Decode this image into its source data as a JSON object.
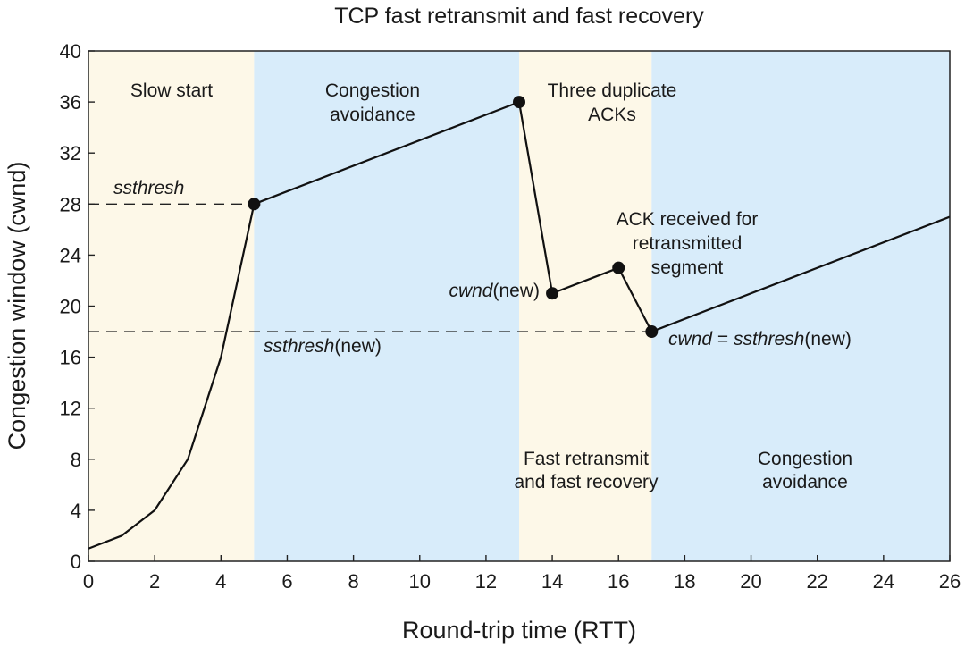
{
  "chart_data": {
    "type": "line",
    "title": "TCP fast retransmit and fast recovery",
    "xlabel": "Round-trip time (RTT)",
    "ylabel": "Congestion window (cwnd)",
    "xlim": [
      0,
      26
    ],
    "ylim": [
      0,
      40
    ],
    "xticks": [
      0,
      2,
      4,
      6,
      8,
      10,
      12,
      14,
      16,
      18,
      20,
      22,
      24,
      26
    ],
    "yticks": [
      0,
      4,
      8,
      12,
      16,
      20,
      24,
      28,
      32,
      36,
      40
    ],
    "grid": false,
    "series": [
      {
        "name": "cwnd",
        "x": [
          0,
          1,
          2,
          3,
          4,
          5,
          13,
          14,
          16,
          17,
          26
        ],
        "y": [
          1,
          2,
          4,
          8,
          16,
          28,
          36,
          21,
          23,
          18,
          27
        ]
      }
    ],
    "markers": [
      {
        "x": 5,
        "y": 28
      },
      {
        "x": 13,
        "y": 36
      },
      {
        "x": 14,
        "y": 21
      },
      {
        "x": 16,
        "y": 23
      },
      {
        "x": 17,
        "y": 18
      }
    ],
    "hlines": [
      {
        "y": 28,
        "x_range": [
          0,
          5
        ],
        "style": "dashed"
      },
      {
        "y": 18,
        "x_range": [
          0,
          17
        ],
        "style": "dashed"
      }
    ],
    "regions": [
      {
        "x_range": [
          0,
          5
        ],
        "color": "#fdf8e8",
        "phase": "slow-start"
      },
      {
        "x_range": [
          5,
          13
        ],
        "color": "#d8ecfa",
        "phase": "congestion-avoidance"
      },
      {
        "x_range": [
          13,
          17
        ],
        "color": "#fdf8e8",
        "phase": "fast-recovery"
      },
      {
        "x_range": [
          17,
          26
        ],
        "color": "#d8ecfa",
        "phase": "congestion-avoidance"
      }
    ],
    "annotations": {
      "slow_start": "Slow start",
      "ca1_line1": "Congestion",
      "ca1_line2": "avoidance",
      "dup_line1": "Three duplicate",
      "dup_line2": "ACKs",
      "ssthresh": "ssthresh",
      "ack_line1": "ACK received for",
      "ack_line2": "retransmitted",
      "ack_line3": "segment",
      "cwnd_new_italic": "cwnd",
      "cwnd_new_rest": "(new)",
      "ssthresh_new_italic": "ssthresh",
      "ssthresh_new_rest": "(new)",
      "eq_cwnd": "cwnd",
      "eq_sign": " = ",
      "eq_ssthresh": "ssthresh",
      "eq_rest": "(new)",
      "fr_line1": "Fast retransmit",
      "fr_line2": "and fast recovery",
      "ca2_line1": "Congestion",
      "ca2_line2": "avoidance"
    }
  }
}
